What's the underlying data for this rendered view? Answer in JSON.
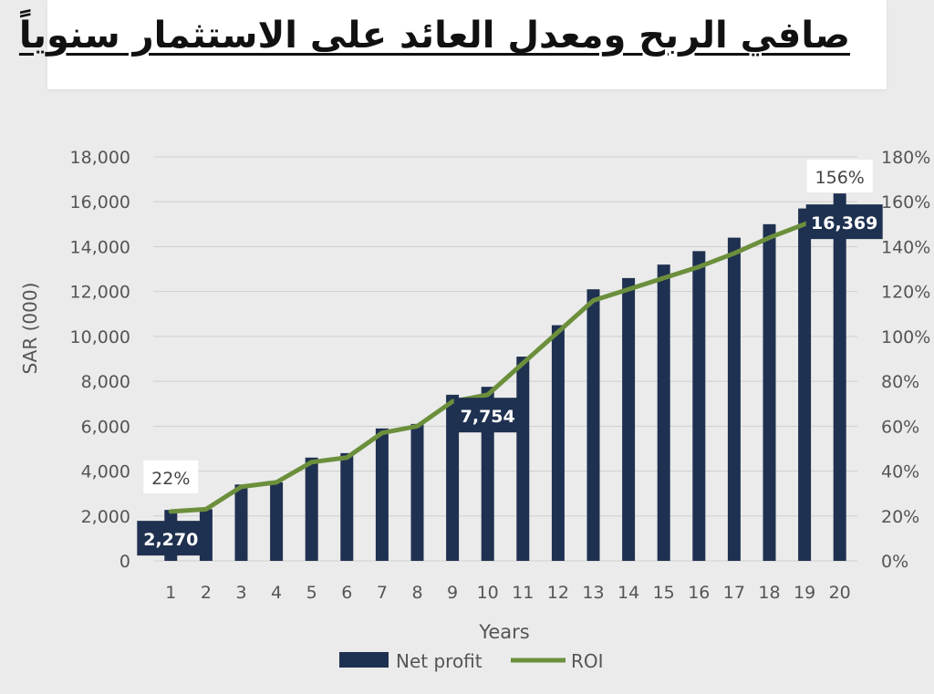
{
  "title": "صافي الربح  ومعدل العائد على الاستثمار سنوياً",
  "chart_data": {
    "type": "bar",
    "title": "صافي الربح  ومعدل العائد على الاستثمار سنوياً",
    "xlabel": "Years",
    "ylabel": "SAR (000)",
    "categories": [
      "1",
      "2",
      "3",
      "4",
      "5",
      "6",
      "7",
      "8",
      "9",
      "10",
      "11",
      "12",
      "13",
      "14",
      "15",
      "16",
      "17",
      "18",
      "19",
      "20"
    ],
    "ylim": [
      0,
      18000
    ],
    "y_ticks": [
      "0",
      "2,000",
      "4,000",
      "6,000",
      "8,000",
      "10,000",
      "12,000",
      "14,000",
      "16,000",
      "18,000"
    ],
    "y2lim": [
      0,
      180
    ],
    "y2_ticks": [
      "0%",
      "20%",
      "40%",
      "60%",
      "80%",
      "100%",
      "120%",
      "140%",
      "160%",
      "180%"
    ],
    "grid": true,
    "legend_position": "bottom",
    "series": [
      {
        "name": "Net profit",
        "type": "bar",
        "color": "#1f3150",
        "axis": "left",
        "values": [
          2270,
          2300,
          3400,
          3500,
          4600,
          4800,
          5900,
          6100,
          7400,
          7754,
          9100,
          10500,
          12100,
          12600,
          13200,
          13800,
          14400,
          15000,
          15700,
          16369
        ]
      },
      {
        "name": "ROI",
        "type": "line",
        "color": "#6c8f3c",
        "axis": "right",
        "values": [
          22,
          23,
          33,
          35,
          44,
          46,
          57,
          60,
          71,
          74,
          88,
          102,
          116,
          121,
          126,
          131,
          137,
          144,
          150,
          156
        ]
      }
    ],
    "annotations": [
      {
        "text": "2,270",
        "series": "Net profit",
        "index": 0,
        "style": "dark"
      },
      {
        "text": "7,754",
        "series": "Net profit",
        "index": 9,
        "style": "dark"
      },
      {
        "text": "16,369",
        "series": "Net profit",
        "index": 19,
        "style": "dark"
      },
      {
        "text": "22%",
        "series": "ROI",
        "index": 0,
        "style": "light"
      },
      {
        "text": "156%",
        "series": "ROI",
        "index": 19,
        "style": "light"
      }
    ]
  }
}
